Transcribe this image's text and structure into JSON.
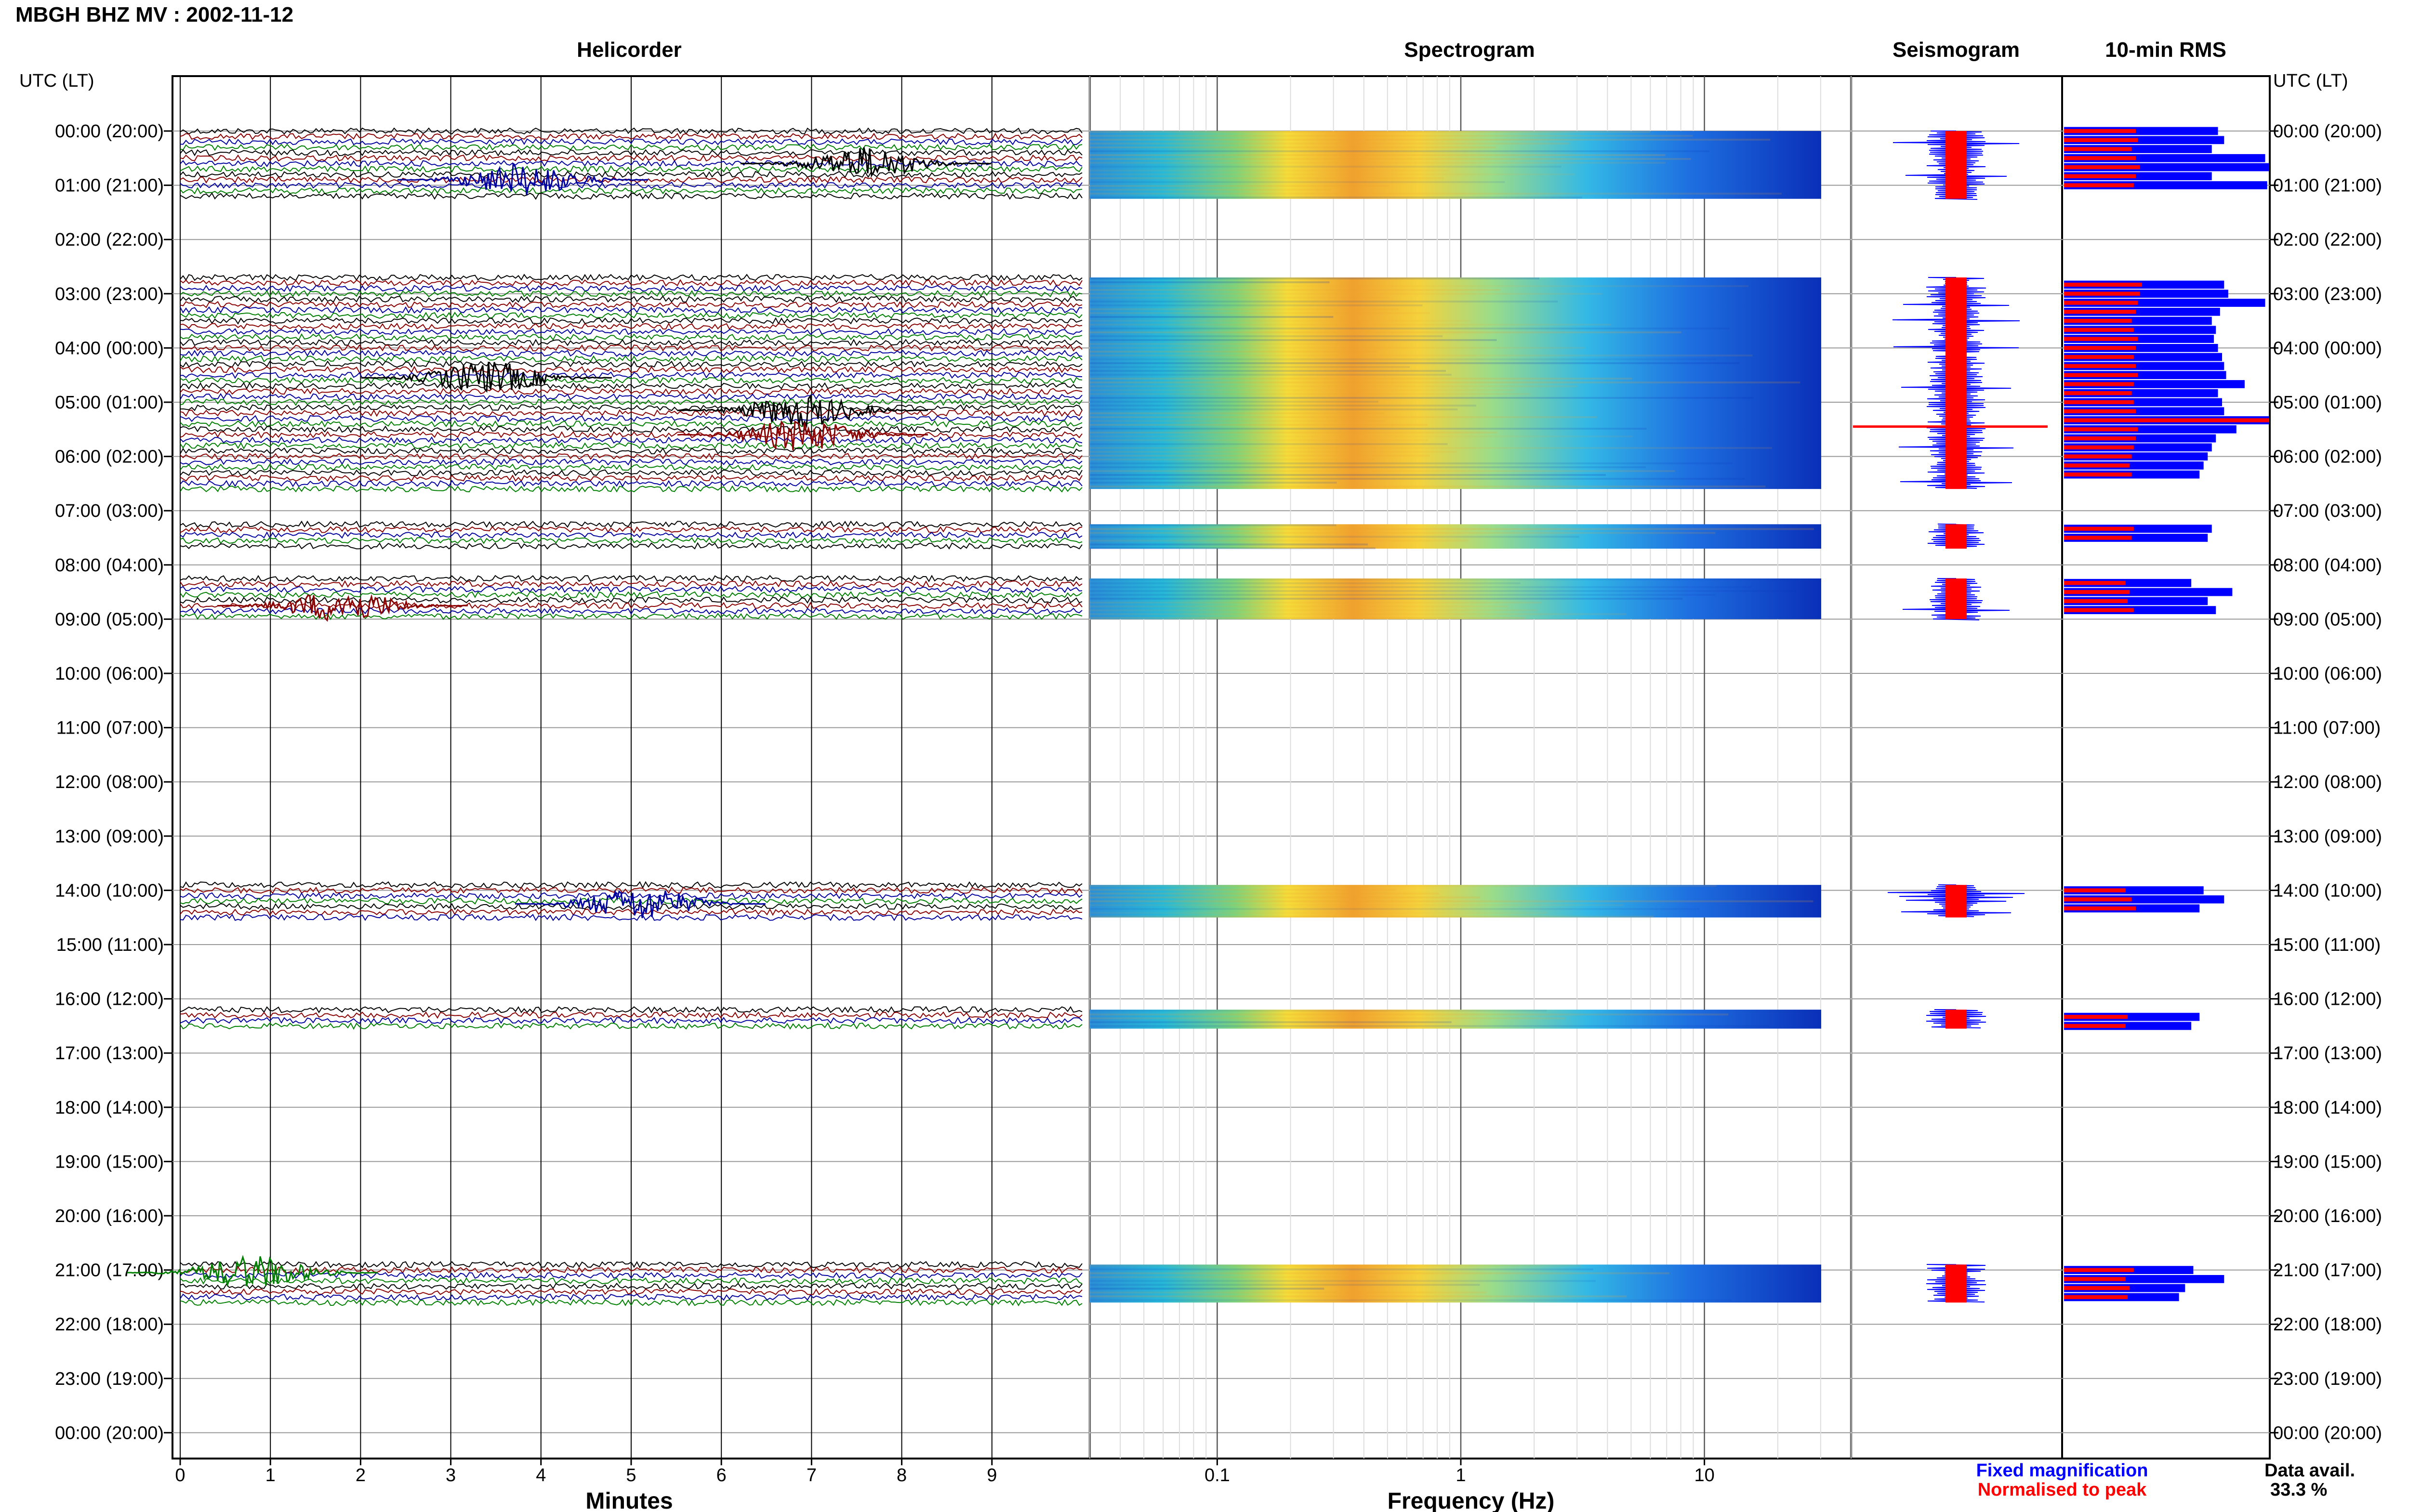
{
  "header": {
    "title": "MBGH BHZ MV : 2002-11-12"
  },
  "panels": {
    "helicorder": "Helicorder",
    "spectrogram": "Spectrogram",
    "seismogram": "Seismogram",
    "rms": "10-min RMS"
  },
  "time_axis": {
    "left_label": "UTC (LT)",
    "right_label": "UTC (LT)",
    "hours": [
      "00:00 (20:00)",
      "01:00 (21:00)",
      "02:00 (22:00)",
      "03:00 (23:00)",
      "04:00 (00:00)",
      "05:00 (01:00)",
      "06:00 (02:00)",
      "07:00 (03:00)",
      "08:00 (04:00)",
      "09:00 (05:00)",
      "10:00 (06:00)",
      "11:00 (07:00)",
      "12:00 (08:00)",
      "13:00 (09:00)",
      "14:00 (10:00)",
      "15:00 (11:00)",
      "16:00 (12:00)",
      "17:00 (13:00)",
      "18:00 (14:00)",
      "19:00 (15:00)",
      "20:00 (16:00)",
      "21:00 (17:00)",
      "22:00 (18:00)",
      "23:00 (19:00)",
      "00:00 (20:00)"
    ]
  },
  "helicorder_axis": {
    "label": "Minutes",
    "ticks": [
      "0",
      "1",
      "2",
      "3",
      "4",
      "5",
      "6",
      "7",
      "8",
      "9"
    ]
  },
  "spectrogram_axis": {
    "label": "Frequency (Hz)",
    "ticks": [
      "0.1",
      "1",
      "10"
    ]
  },
  "legend": {
    "fixed": "Fixed magnification",
    "normalised": "Normalised to peak",
    "fixed_color": "#0000ff",
    "normalised_color": "#ff0000"
  },
  "data_availability": {
    "label": "Data avail.",
    "value": "33.3 %"
  },
  "chart_data": {
    "type": "helicorder",
    "day": "2002-11-12",
    "station": "MBGH BHZ MV",
    "trace_colors": [
      "#000000",
      "#8b0000",
      "#0000a0",
      "#008000"
    ],
    "x_minutes": [
      0,
      10
    ],
    "spectrogram_freq_range_hz": [
      0.03,
      40
    ],
    "spectrogram_scale": "log",
    "data_segments_hours": [
      [
        0,
        1.25
      ],
      [
        2.7,
        6.6
      ],
      [
        7.25,
        7.7
      ],
      [
        8.25,
        9.0
      ],
      [
        13.9,
        14.5
      ],
      [
        16.2,
        16.55
      ],
      [
        20.9,
        21.6
      ]
    ],
    "rms_10min": [
      {
        "hour": 0.0,
        "fixed": 0.75,
        "normalised": 0.35
      },
      {
        "hour": 0.167,
        "fixed": 0.78,
        "normalised": 0.36
      },
      {
        "hour": 0.333,
        "fixed": 0.72,
        "normalised": 0.33
      },
      {
        "hour": 0.5,
        "fixed": 0.98,
        "normalised": 0.35
      },
      {
        "hour": 0.667,
        "fixed": 1.0,
        "normalised": 0.37
      },
      {
        "hour": 0.833,
        "fixed": 0.72,
        "normalised": 0.35
      },
      {
        "hour": 1.0,
        "fixed": 0.99,
        "normalised": 0.34
      },
      {
        "hour": 2.833,
        "fixed": 0.78,
        "normalised": 0.38
      },
      {
        "hour": 3.0,
        "fixed": 0.8,
        "normalised": 0.37
      },
      {
        "hour": 3.167,
        "fixed": 0.98,
        "normalised": 0.36
      },
      {
        "hour": 3.333,
        "fixed": 0.76,
        "normalised": 0.35
      },
      {
        "hour": 3.5,
        "fixed": 0.72,
        "normalised": 0.33
      },
      {
        "hour": 3.667,
        "fixed": 0.74,
        "normalised": 0.34
      },
      {
        "hour": 3.833,
        "fixed": 0.73,
        "normalised": 0.36
      },
      {
        "hour": 4.0,
        "fixed": 0.75,
        "normalised": 0.35
      },
      {
        "hour": 4.167,
        "fixed": 0.77,
        "normalised": 0.34
      },
      {
        "hour": 4.333,
        "fixed": 0.78,
        "normalised": 0.35
      },
      {
        "hour": 4.5,
        "fixed": 0.79,
        "normalised": 0.36
      },
      {
        "hour": 4.667,
        "fixed": 0.88,
        "normalised": 0.34
      },
      {
        "hour": 4.833,
        "fixed": 0.75,
        "normalised": 0.33
      },
      {
        "hour": 5.0,
        "fixed": 0.77,
        "normalised": 0.34
      },
      {
        "hour": 5.167,
        "fixed": 0.78,
        "normalised": 0.35
      },
      {
        "hour": 5.333,
        "fixed": 1.0,
        "normalised": 1.0
      },
      {
        "hour": 5.5,
        "fixed": 0.84,
        "normalised": 0.36
      },
      {
        "hour": 5.667,
        "fixed": 0.74,
        "normalised": 0.35
      },
      {
        "hour": 5.833,
        "fixed": 0.72,
        "normalised": 0.34
      },
      {
        "hour": 6.0,
        "fixed": 0.7,
        "normalised": 0.33
      },
      {
        "hour": 6.167,
        "fixed": 0.68,
        "normalised": 0.32
      },
      {
        "hour": 6.333,
        "fixed": 0.66,
        "normalised": 0.33
      },
      {
        "hour": 7.333,
        "fixed": 0.72,
        "normalised": 0.34
      },
      {
        "hour": 7.5,
        "fixed": 0.7,
        "normalised": 0.33
      },
      {
        "hour": 8.333,
        "fixed": 0.62,
        "normalised": 0.3
      },
      {
        "hour": 8.5,
        "fixed": 0.82,
        "normalised": 0.32
      },
      {
        "hour": 8.667,
        "fixed": 0.7,
        "normalised": 0.31
      },
      {
        "hour": 8.833,
        "fixed": 0.74,
        "normalised": 0.34
      },
      {
        "hour": 14.0,
        "fixed": 0.68,
        "normalised": 0.3
      },
      {
        "hour": 14.167,
        "fixed": 0.78,
        "normalised": 0.33
      },
      {
        "hour": 14.333,
        "fixed": 0.66,
        "normalised": 0.35
      },
      {
        "hour": 16.333,
        "fixed": 0.66,
        "normalised": 0.31
      },
      {
        "hour": 16.5,
        "fixed": 0.62,
        "normalised": 0.3
      },
      {
        "hour": 21.0,
        "fixed": 0.63,
        "normalised": 0.34
      },
      {
        "hour": 21.167,
        "fixed": 0.78,
        "normalised": 0.3
      },
      {
        "hour": 21.333,
        "fixed": 0.59,
        "normalised": 0.32
      },
      {
        "hour": 21.5,
        "fixed": 0.56,
        "normalised": 0.31
      }
    ],
    "events": [
      {
        "hour": 0.6,
        "minute": 7.6,
        "color": "#000000"
      },
      {
        "hour": 0.9,
        "minute": 3.8,
        "color": "#0000a0"
      },
      {
        "hour": 4.55,
        "minute": 3.4,
        "color": "#000000"
      },
      {
        "hour": 5.15,
        "minute": 6.9,
        "color": "#000000"
      },
      {
        "hour": 5.6,
        "minute": 6.9,
        "color": "#8b0000"
      },
      {
        "hour": 8.75,
        "minute": 1.8,
        "color": "#8b0000"
      },
      {
        "hour": 14.25,
        "minute": 5.1,
        "color": "#0000a0"
      },
      {
        "hour": 21.05,
        "minute": 0.8,
        "color": "#008000"
      }
    ]
  }
}
